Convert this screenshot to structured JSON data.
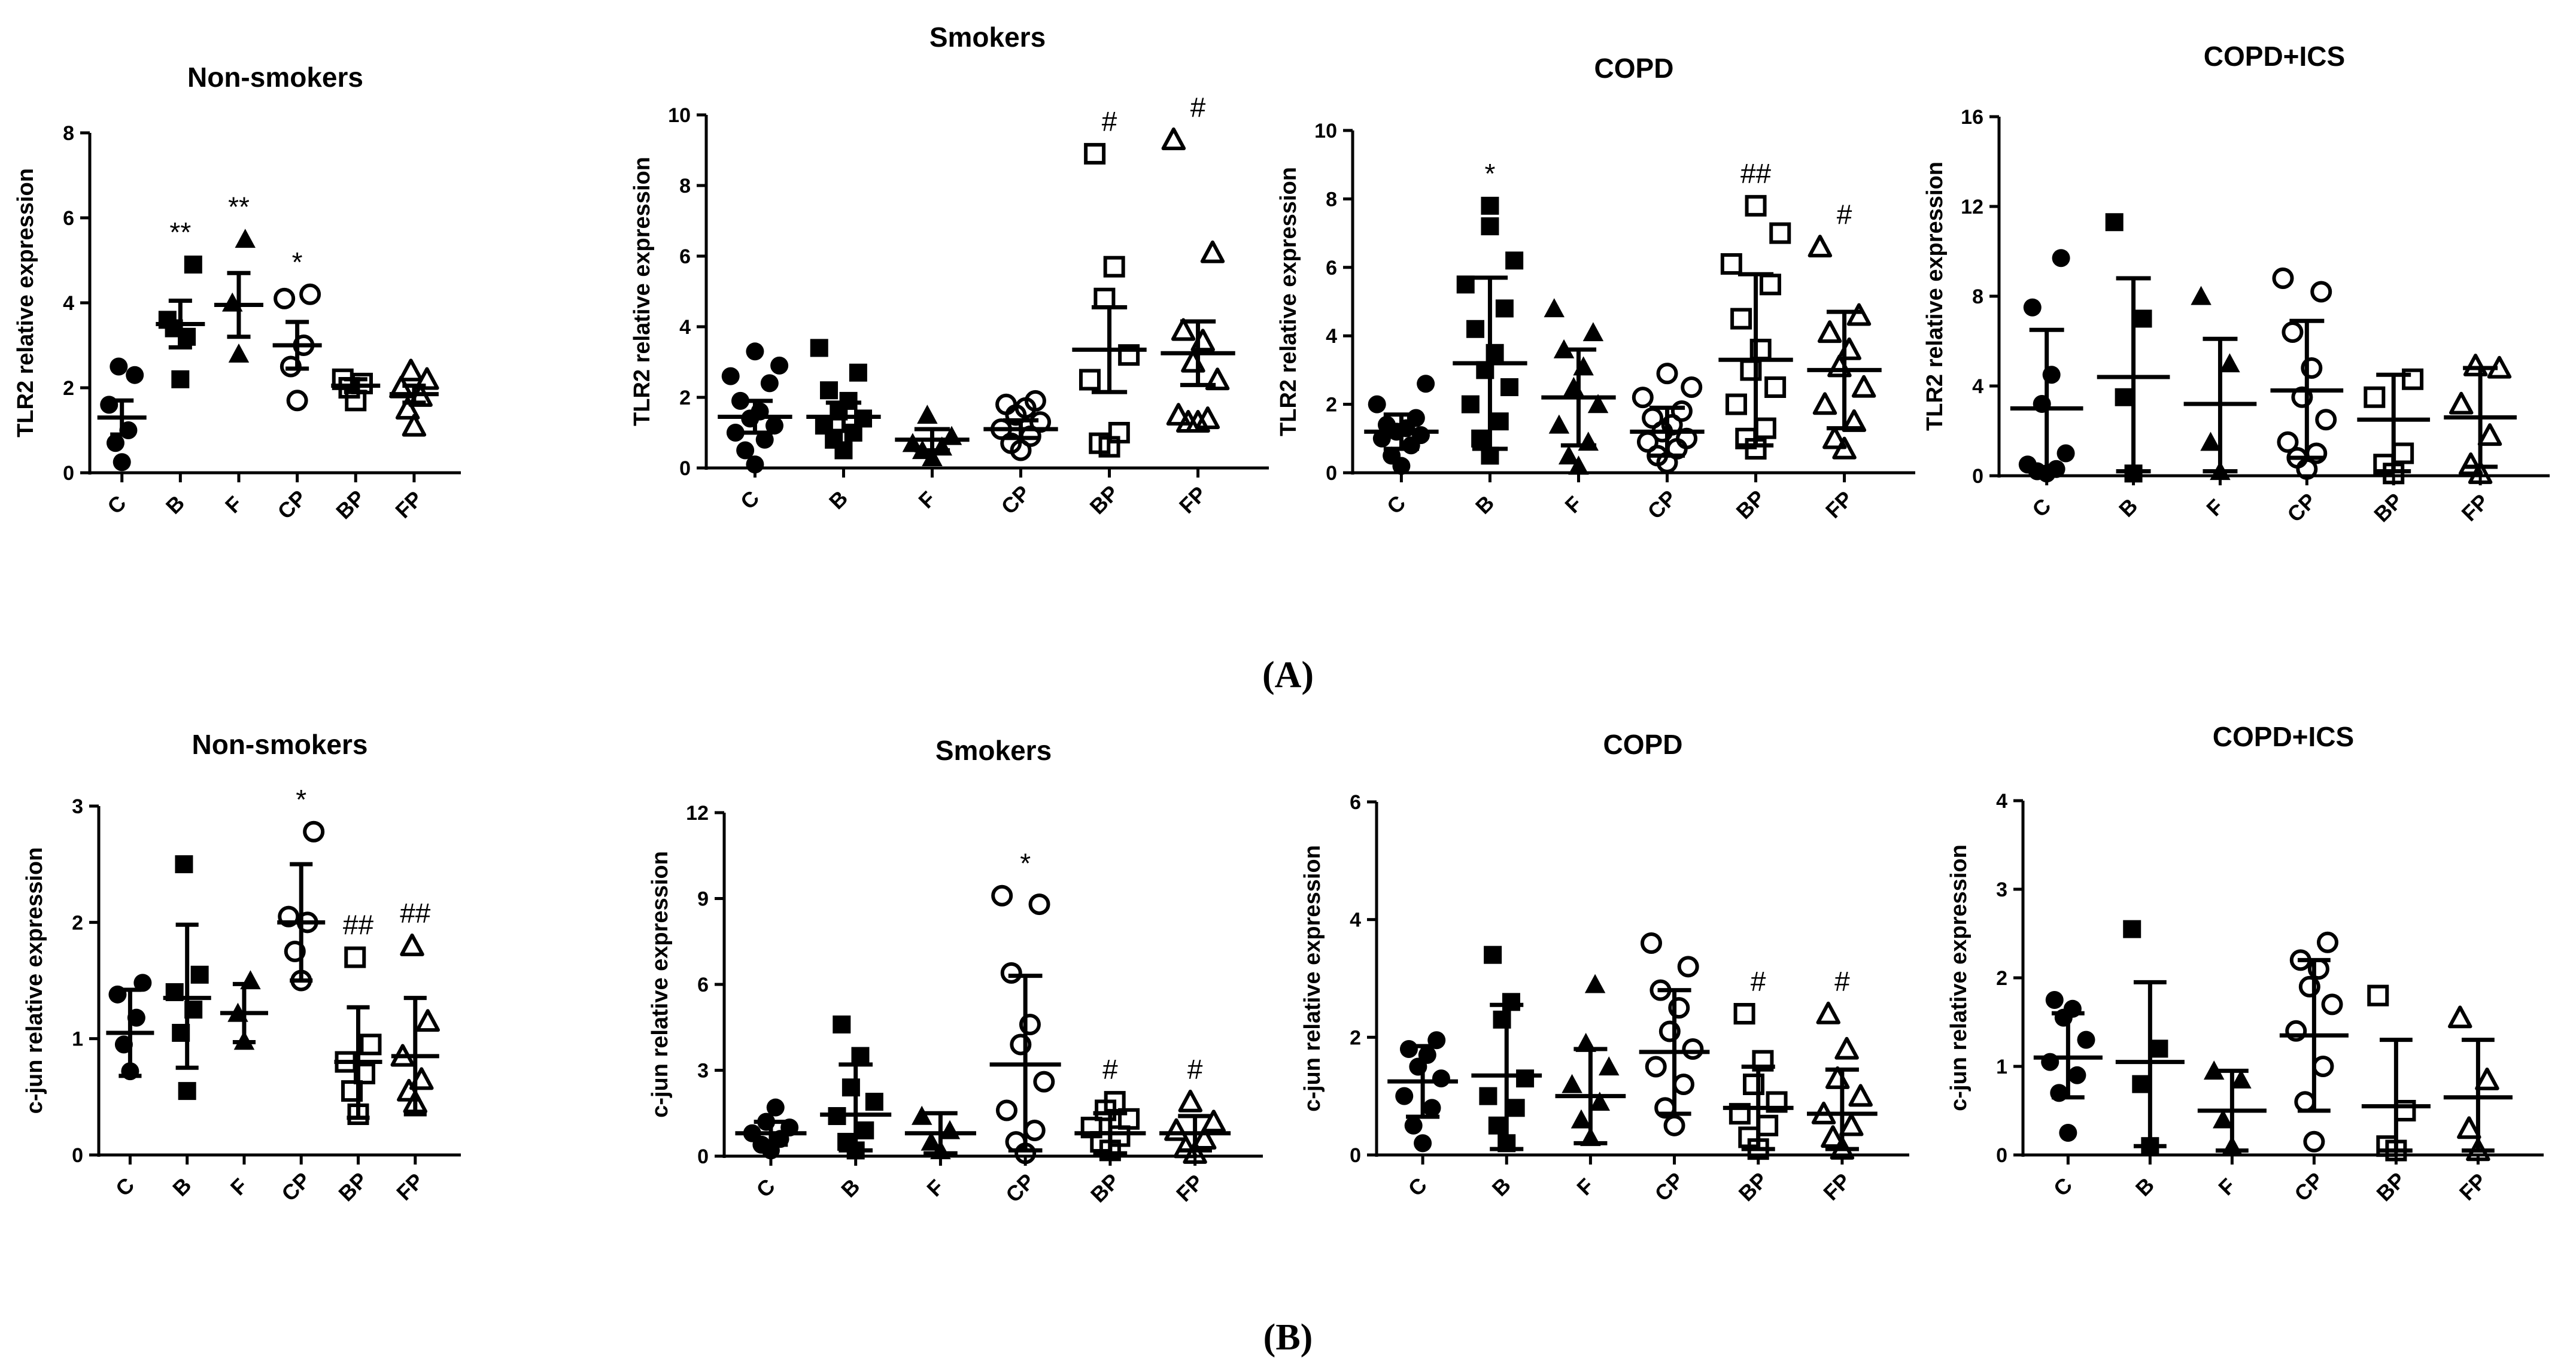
{
  "figure_labels": {
    "A": "(A)",
    "B": "(B)"
  },
  "chart_data": [
    {
      "type": "scatter",
      "title": "Non-smokers",
      "ylabel": "TLR2 relative expression",
      "ylim": [
        0,
        8
      ],
      "yticks": [
        0,
        2,
        4,
        6,
        8
      ],
      "categories": [
        "C",
        "B",
        "F",
        "CP",
        "BP",
        "FP"
      ],
      "markers": [
        "filled-circle",
        "filled-square",
        "filled-triangle",
        "open-circle",
        "open-square",
        "open-triangle"
      ],
      "groups": [
        {
          "label": "C",
          "mean": 1.3,
          "err_low": 0.9,
          "err_high": 1.7,
          "points": [
            0.25,
            0.7,
            1.0,
            1.6,
            2.3,
            2.5
          ],
          "annotation": ""
        },
        {
          "label": "B",
          "mean": 3.5,
          "err_low": 2.95,
          "err_high": 4.05,
          "points": [
            2.2,
            3.4,
            3.2,
            3.6,
            4.9
          ],
          "annotation": "**"
        },
        {
          "label": "F",
          "mean": 3.95,
          "err_low": 3.2,
          "err_high": 4.7,
          "points": [
            2.8,
            4.0,
            5.5
          ],
          "annotation": "**"
        },
        {
          "label": "CP",
          "mean": 3.0,
          "err_low": 2.45,
          "err_high": 3.55,
          "points": [
            1.7,
            2.5,
            3.0,
            4.1,
            4.2
          ],
          "annotation": "*"
        },
        {
          "label": "BP",
          "mean": 2.05,
          "err_low": 1.9,
          "err_high": 2.2,
          "points": [
            1.7,
            2.0,
            2.1,
            2.2
          ],
          "annotation": ""
        },
        {
          "label": "FP",
          "mean": 1.85,
          "err_low": 1.65,
          "err_high": 2.05,
          "points": [
            1.1,
            1.5,
            1.8,
            2.0,
            2.2,
            2.4
          ],
          "annotation": ""
        }
      ]
    },
    {
      "type": "scatter",
      "title": "Smokers",
      "ylabel": "TLR2 relative expression",
      "ylim": [
        0,
        10
      ],
      "yticks": [
        0,
        2,
        4,
        6,
        8,
        10
      ],
      "categories": [
        "C",
        "B",
        "F",
        "CP",
        "BP",
        "FP"
      ],
      "markers": [
        "filled-circle",
        "filled-square",
        "filled-triangle",
        "open-circle",
        "open-square",
        "open-triangle"
      ],
      "groups": [
        {
          "label": "C",
          "mean": 1.45,
          "err_low": 1.0,
          "err_high": 1.9,
          "points": [
            0.1,
            0.5,
            0.8,
            1.0,
            1.2,
            1.4,
            1.6,
            1.9,
            2.4,
            2.6,
            2.9,
            3.3
          ],
          "annotation": ""
        },
        {
          "label": "B",
          "mean": 1.45,
          "err_low": 1.05,
          "err_high": 1.85,
          "points": [
            0.5,
            0.8,
            1.0,
            1.2,
            1.4,
            1.6,
            1.9,
            2.2,
            2.7,
            3.4
          ],
          "annotation": ""
        },
        {
          "label": "F",
          "mean": 0.8,
          "err_low": 0.5,
          "err_high": 1.1,
          "points": [
            0.3,
            0.5,
            0.6,
            0.7,
            0.9,
            1.5
          ],
          "annotation": ""
        },
        {
          "label": "CP",
          "mean": 1.1,
          "err_low": 0.85,
          "err_high": 1.35,
          "points": [
            0.5,
            0.7,
            0.9,
            1.1,
            1.3,
            1.5,
            1.7,
            1.8,
            1.9
          ],
          "annotation": ""
        },
        {
          "label": "BP",
          "mean": 3.35,
          "err_low": 2.15,
          "err_high": 4.55,
          "points": [
            0.6,
            0.7,
            1.0,
            2.5,
            3.2,
            4.8,
            5.7,
            8.9
          ],
          "annotation": "#"
        },
        {
          "label": "FP",
          "mean": 3.25,
          "err_low": 2.35,
          "err_high": 4.15,
          "points": [
            1.3,
            1.3,
            1.4,
            1.5,
            2.5,
            3.0,
            3.6,
            3.9,
            6.1,
            9.3
          ],
          "annotation": "#"
        }
      ]
    },
    {
      "type": "scatter",
      "title": "COPD",
      "ylabel": "TLR2 relative expression",
      "ylim": [
        0,
        10
      ],
      "yticks": [
        0,
        2,
        4,
        6,
        8,
        10
      ],
      "categories": [
        "C",
        "B",
        "F",
        "CP",
        "BP",
        "FP"
      ],
      "markers": [
        "filled-circle",
        "filled-square",
        "filled-triangle",
        "open-circle",
        "open-square",
        "open-triangle"
      ],
      "groups": [
        {
          "label": "C",
          "mean": 1.2,
          "err_low": 0.7,
          "err_high": 1.7,
          "points": [
            0.2,
            0.5,
            0.8,
            1.0,
            1.1,
            1.2,
            1.3,
            1.4,
            1.6,
            2.0,
            2.6
          ],
          "annotation": ""
        },
        {
          "label": "B",
          "mean": 3.2,
          "err_low": 0.7,
          "err_high": 5.7,
          "points": [
            0.5,
            1.0,
            1.5,
            2.0,
            2.5,
            3.0,
            3.5,
            4.2,
            4.8,
            5.5,
            6.2,
            7.2,
            7.8
          ],
          "annotation": "*"
        },
        {
          "label": "F",
          "mean": 2.2,
          "err_low": 0.8,
          "err_high": 3.6,
          "points": [
            0.2,
            0.5,
            0.9,
            1.4,
            2.0,
            2.5,
            3.1,
            3.6,
            4.1,
            4.8
          ],
          "annotation": ""
        },
        {
          "label": "CP",
          "mean": 1.2,
          "err_low": 0.5,
          "err_high": 1.9,
          "points": [
            0.3,
            0.5,
            0.7,
            0.9,
            1.0,
            1.2,
            1.4,
            1.6,
            1.8,
            2.2,
            2.5,
            2.9
          ],
          "annotation": ""
        },
        {
          "label": "BP",
          "mean": 3.3,
          "err_low": 0.8,
          "err_high": 5.8,
          "points": [
            0.7,
            1.0,
            1.3,
            2.0,
            2.5,
            3.0,
            3.6,
            4.5,
            5.5,
            6.1,
            7.0,
            7.8
          ],
          "annotation": "##"
        },
        {
          "label": "FP",
          "mean": 3.0,
          "err_low": 1.3,
          "err_high": 4.7,
          "points": [
            0.7,
            1.0,
            1.5,
            2.0,
            2.5,
            3.1,
            3.6,
            4.1,
            4.6,
            6.6
          ],
          "annotation": "#"
        }
      ]
    },
    {
      "type": "scatter",
      "title": "COPD+ICS",
      "ylabel": "TLR2 relative expression",
      "ylim": [
        0,
        16
      ],
      "yticks": [
        0,
        4,
        8,
        12,
        16
      ],
      "categories": [
        "C",
        "B",
        "F",
        "CP",
        "BP",
        "FP"
      ],
      "markers": [
        "filled-circle",
        "filled-square",
        "filled-triangle",
        "open-circle",
        "open-square",
        "open-triangle"
      ],
      "groups": [
        {
          "label": "C",
          "mean": 3.0,
          "err_low": 0.2,
          "err_high": 6.5,
          "points": [
            0.1,
            0.2,
            0.3,
            0.5,
            1.0,
            3.2,
            4.5,
            7.5,
            9.7
          ],
          "annotation": ""
        },
        {
          "label": "B",
          "mean": 4.4,
          "err_low": 0.2,
          "err_high": 8.8,
          "points": [
            0.1,
            3.5,
            7.0,
            11.3
          ],
          "annotation": ""
        },
        {
          "label": "F",
          "mean": 3.2,
          "err_low": 0.2,
          "err_high": 6.1,
          "points": [
            0.2,
            1.5,
            5.0,
            8.0
          ],
          "annotation": ""
        },
        {
          "label": "CP",
          "mean": 3.8,
          "err_low": 0.8,
          "err_high": 6.9,
          "points": [
            0.3,
            0.8,
            1.0,
            1.5,
            2.5,
            3.5,
            4.8,
            6.4,
            8.2,
            8.8
          ],
          "annotation": ""
        },
        {
          "label": "BP",
          "mean": 2.5,
          "err_low": 0.2,
          "err_high": 4.5,
          "points": [
            0.1,
            0.5,
            1.0,
            3.5,
            4.3
          ],
          "annotation": ""
        },
        {
          "label": "FP",
          "mean": 2.6,
          "err_low": 0.4,
          "err_high": 4.8,
          "points": [
            0.1,
            0.5,
            1.8,
            3.2,
            4.8,
            4.9
          ],
          "annotation": ""
        }
      ]
    },
    {
      "type": "scatter",
      "title": "Non-smokers",
      "ylabel": "c-jun relative expression",
      "ylim": [
        0,
        3
      ],
      "yticks": [
        0,
        1,
        2,
        3
      ],
      "categories": [
        "C",
        "B",
        "F",
        "CP",
        "BP",
        "FP"
      ],
      "markers": [
        "filled-circle",
        "filled-square",
        "filled-triangle",
        "open-circle",
        "open-square",
        "open-triangle"
      ],
      "groups": [
        {
          "label": "C",
          "mean": 1.05,
          "err_low": 0.68,
          "err_high": 1.42,
          "points": [
            0.72,
            0.95,
            1.18,
            1.38,
            1.48
          ],
          "annotation": ""
        },
        {
          "label": "B",
          "mean": 1.35,
          "err_low": 0.75,
          "err_high": 1.98,
          "points": [
            0.55,
            1.05,
            1.25,
            1.4,
            1.55,
            2.5
          ],
          "annotation": ""
        },
        {
          "label": "F",
          "mean": 1.22,
          "err_low": 0.97,
          "err_high": 1.47,
          "points": [
            0.98,
            1.22,
            1.5
          ],
          "annotation": ""
        },
        {
          "label": "CP",
          "mean": 2.0,
          "err_low": 1.5,
          "err_high": 2.5,
          "points": [
            1.5,
            1.75,
            2.0,
            2.05,
            2.78
          ],
          "annotation": "*"
        },
        {
          "label": "BP",
          "mean": 0.8,
          "err_low": 0.32,
          "err_high": 1.27,
          "points": [
            0.35,
            0.55,
            0.7,
            0.8,
            0.95,
            1.7
          ],
          "annotation": "##"
        },
        {
          "label": "FP",
          "mean": 0.85,
          "err_low": 0.35,
          "err_high": 1.35,
          "points": [
            0.45,
            0.55,
            0.65,
            0.85,
            1.15,
            1.8
          ],
          "annotation": "##"
        }
      ]
    },
    {
      "type": "scatter",
      "title": "Smokers",
      "ylabel": "c-jun relative expression",
      "ylim": [
        0,
        12
      ],
      "yticks": [
        0,
        3,
        6,
        9,
        12
      ],
      "categories": [
        "C",
        "B",
        "F",
        "CP",
        "BP",
        "FP"
      ],
      "markers": [
        "filled-circle",
        "filled-square",
        "filled-triangle",
        "open-circle",
        "open-square",
        "open-triangle"
      ],
      "groups": [
        {
          "label": "C",
          "mean": 0.8,
          "err_low": 0.4,
          "err_high": 1.2,
          "points": [
            0.2,
            0.4,
            0.6,
            0.8,
            1.0,
            1.2,
            1.7
          ],
          "annotation": ""
        },
        {
          "label": "B",
          "mean": 1.45,
          "err_low": 0.2,
          "err_high": 3.2,
          "points": [
            0.2,
            0.5,
            0.9,
            1.4,
            1.9,
            2.4,
            3.5,
            4.6
          ],
          "annotation": ""
        },
        {
          "label": "F",
          "mean": 0.8,
          "err_low": 0.1,
          "err_high": 1.5,
          "points": [
            0.2,
            0.5,
            0.9,
            1.4
          ],
          "annotation": ""
        },
        {
          "label": "CP",
          "mean": 3.2,
          "err_low": 0.2,
          "err_high": 6.3,
          "points": [
            0.1,
            0.5,
            0.9,
            1.6,
            2.6,
            3.9,
            4.6,
            6.4,
            8.8,
            9.1
          ],
          "annotation": "*"
        },
        {
          "label": "BP",
          "mean": 0.8,
          "err_low": 0.1,
          "err_high": 1.5,
          "points": [
            0.2,
            0.5,
            0.7,
            1.0,
            1.3,
            1.6,
            1.9
          ],
          "annotation": "#"
        },
        {
          "label": "FP",
          "mean": 0.8,
          "err_low": 0.2,
          "err_high": 1.4,
          "points": [
            0.1,
            0.3,
            0.6,
            0.9,
            1.2,
            1.9
          ],
          "annotation": "#"
        }
      ]
    },
    {
      "type": "scatter",
      "title": "COPD",
      "ylabel": "c-jun relative expression",
      "ylim": [
        0,
        6
      ],
      "yticks": [
        0,
        2,
        4,
        6
      ],
      "categories": [
        "C",
        "B",
        "F",
        "CP",
        "BP",
        "FP"
      ],
      "markers": [
        "filled-circle",
        "filled-square",
        "filled-triangle",
        "open-circle",
        "open-square",
        "open-triangle"
      ],
      "groups": [
        {
          "label": "C",
          "mean": 1.25,
          "err_low": 0.65,
          "err_high": 1.85,
          "points": [
            0.2,
            0.5,
            0.8,
            1.0,
            1.3,
            1.5,
            1.7,
            1.8,
            1.95
          ],
          "annotation": ""
        },
        {
          "label": "B",
          "mean": 1.35,
          "err_low": 0.1,
          "err_high": 2.55,
          "points": [
            0.2,
            0.5,
            0.8,
            1.0,
            1.3,
            2.3,
            2.6,
            3.4
          ],
          "annotation": ""
        },
        {
          "label": "F",
          "mean": 1.0,
          "err_low": 0.2,
          "err_high": 1.8,
          "points": [
            0.3,
            0.6,
            0.9,
            1.2,
            1.5,
            1.9,
            2.9
          ],
          "annotation": ""
        },
        {
          "label": "CP",
          "mean": 1.75,
          "err_low": 0.7,
          "err_high": 2.8,
          "points": [
            0.5,
            0.8,
            1.2,
            1.5,
            1.8,
            2.1,
            2.5,
            2.8,
            3.2,
            3.6
          ],
          "annotation": ""
        },
        {
          "label": "BP",
          "mean": 0.8,
          "err_low": 0.1,
          "err_high": 1.5,
          "points": [
            0.1,
            0.3,
            0.5,
            0.7,
            0.9,
            1.2,
            1.6,
            2.4
          ],
          "annotation": "#"
        },
        {
          "label": "FP",
          "mean": 0.7,
          "err_low": 0.1,
          "err_high": 1.45,
          "points": [
            0.1,
            0.3,
            0.5,
            0.7,
            1.0,
            1.3,
            1.8,
            2.4
          ],
          "annotation": "#"
        }
      ]
    },
    {
      "type": "scatter",
      "title": "COPD+ICS",
      "ylabel": "c-jun relative expression",
      "ylim": [
        0,
        4
      ],
      "yticks": [
        0,
        1,
        2,
        3,
        4
      ],
      "categories": [
        "C",
        "B",
        "F",
        "CP",
        "BP",
        "FP"
      ],
      "markers": [
        "filled-circle",
        "filled-square",
        "filled-triangle",
        "open-circle",
        "open-square",
        "open-triangle"
      ],
      "groups": [
        {
          "label": "C",
          "mean": 1.1,
          "err_low": 0.65,
          "err_high": 1.6,
          "points": [
            0.25,
            0.7,
            0.9,
            1.05,
            1.3,
            1.55,
            1.65,
            1.75
          ],
          "annotation": ""
        },
        {
          "label": "B",
          "mean": 1.05,
          "err_low": 0.1,
          "err_high": 1.95,
          "points": [
            0.1,
            0.8,
            1.2,
            2.55
          ],
          "annotation": ""
        },
        {
          "label": "F",
          "mean": 0.5,
          "err_low": 0.05,
          "err_high": 0.95,
          "points": [
            0.1,
            0.4,
            0.85,
            0.95
          ],
          "annotation": ""
        },
        {
          "label": "CP",
          "mean": 1.35,
          "err_low": 0.5,
          "err_high": 2.2,
          "points": [
            0.15,
            0.6,
            1.0,
            1.4,
            1.7,
            1.9,
            2.1,
            2.2,
            2.4
          ],
          "annotation": ""
        },
        {
          "label": "BP",
          "mean": 0.55,
          "err_low": 0.05,
          "err_high": 1.3,
          "points": [
            0.05,
            0.1,
            0.5,
            1.8
          ],
          "annotation": ""
        },
        {
          "label": "FP",
          "mean": 0.65,
          "err_low": 0.05,
          "err_high": 1.3,
          "points": [
            0.05,
            0.3,
            0.85,
            1.55
          ],
          "annotation": ""
        }
      ]
    }
  ]
}
